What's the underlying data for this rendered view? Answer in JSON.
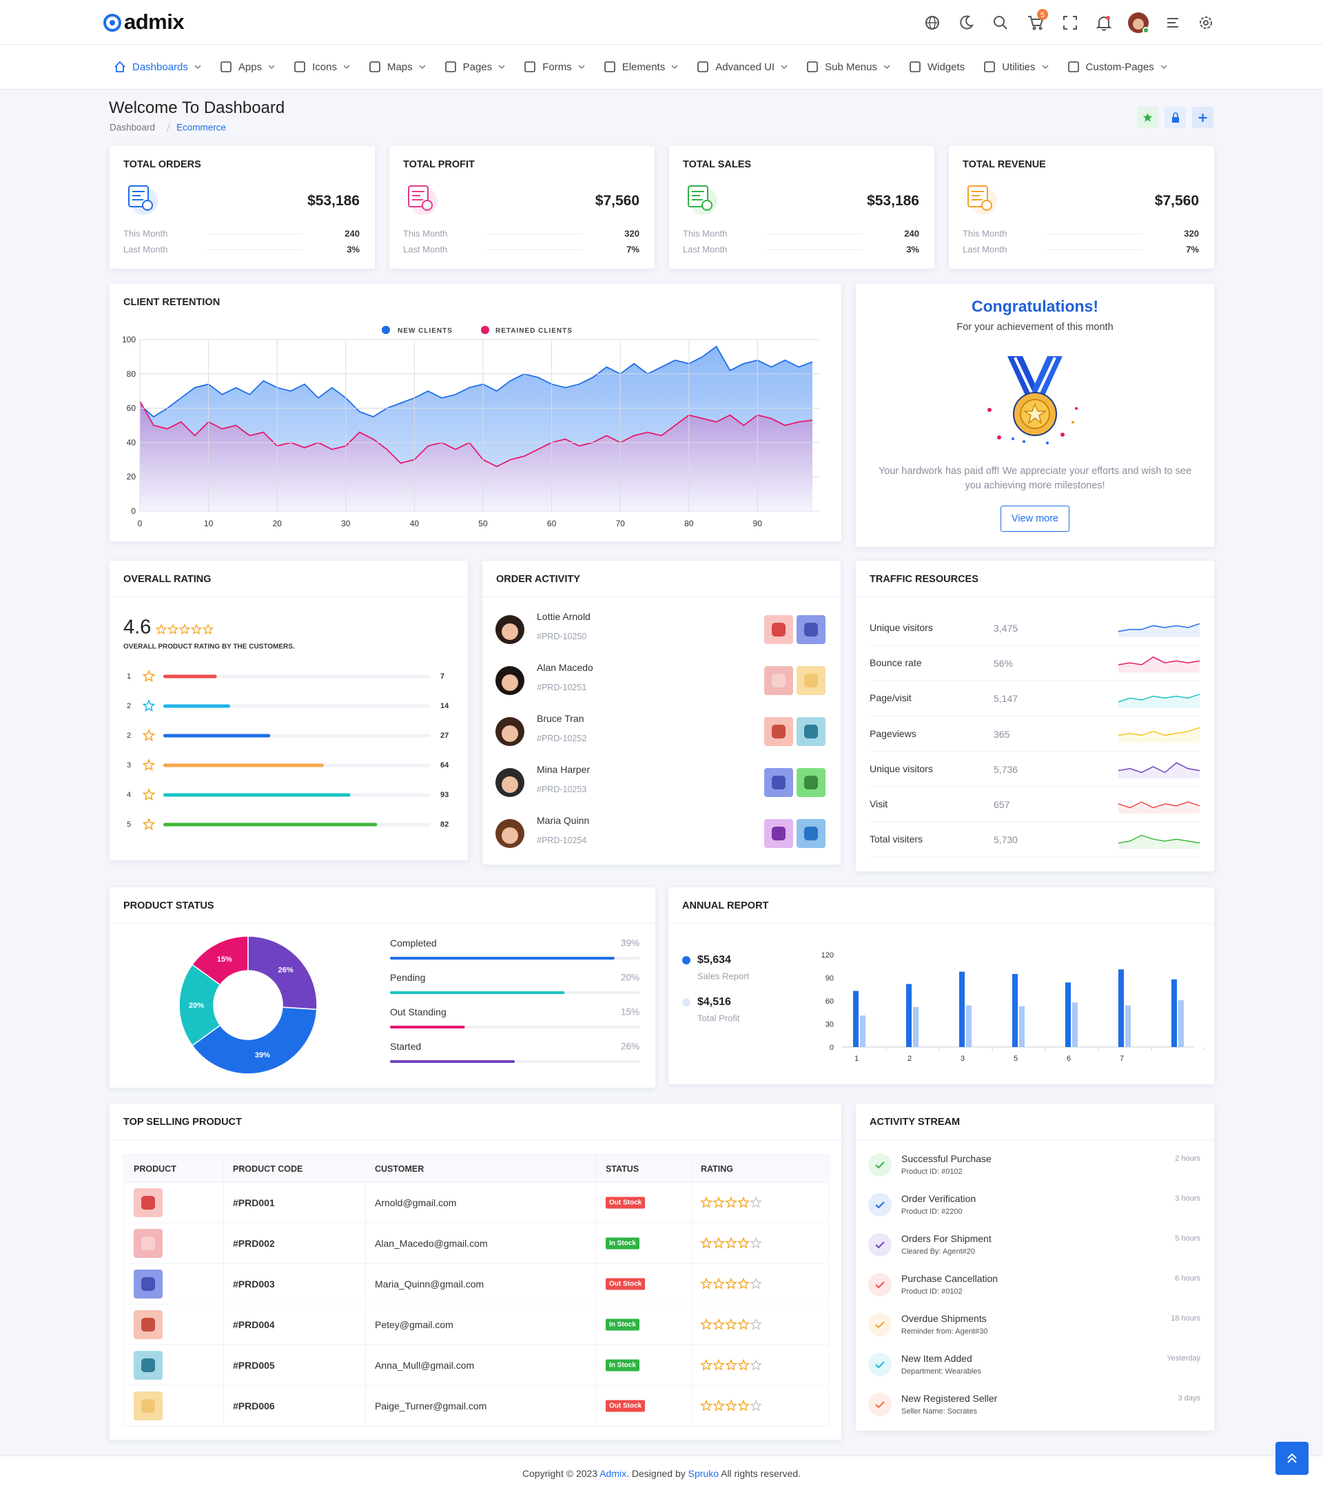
{
  "header": {
    "logo": "admix",
    "cart_count": "5"
  },
  "nav": {
    "items": [
      "Dashboards",
      "Apps",
      "Icons",
      "Maps",
      "Pages",
      "Forms",
      "Elements",
      "Advanced UI",
      "Sub Menus",
      "Widgets",
      "Utilities",
      "Custom-Pages"
    ],
    "dropdown": [
      true,
      true,
      true,
      true,
      true,
      true,
      true,
      true,
      true,
      false,
      true,
      true
    ],
    "active": 0
  },
  "page": {
    "title": "Welcome To Dashboard",
    "breadcrumb": [
      "Dashboard",
      "Ecommerce"
    ]
  },
  "stats": [
    {
      "title": "TOTAL ORDERS",
      "value": "$53,186",
      "color": "#1e6ee8",
      "rows": [
        {
          "label": "This Month",
          "value": "240"
        },
        {
          "label": "Last Month",
          "value": "3%"
        }
      ]
    },
    {
      "title": "TOTAL PROFIT",
      "value": "$7,560",
      "color": "#e8388a",
      "rows": [
        {
          "label": "This Month",
          "value": "320"
        },
        {
          "label": "Last Month",
          "value": "7%"
        }
      ]
    },
    {
      "title": "TOTAL SALES",
      "value": "$53,186",
      "color": "#2fb344",
      "rows": [
        {
          "label": "This Month",
          "value": "240"
        },
        {
          "label": "Last Month",
          "value": "3%"
        }
      ]
    },
    {
      "title": "TOTAL REVENUE",
      "value": "$7,560",
      "color": "#f59f2a",
      "rows": [
        {
          "label": "This Month",
          "value": "320"
        },
        {
          "label": "Last Month",
          "value": "7%"
        }
      ]
    }
  ],
  "client_retention": {
    "type": "area",
    "title": "CLIENT RETENTION",
    "x": [
      0,
      2,
      4,
      6,
      8,
      10,
      12,
      14,
      16,
      18,
      20,
      22,
      24,
      26,
      28,
      30,
      32,
      34,
      36,
      38,
      40,
      42,
      44,
      46,
      48,
      50,
      52,
      54,
      56,
      58,
      60,
      62,
      64,
      66,
      68,
      70,
      72,
      74,
      76,
      78,
      80,
      82,
      84,
      86,
      88,
      90,
      92,
      94,
      96,
      98
    ],
    "series": [
      {
        "name": "NEW CLIENTS",
        "color": "#1e6ee8",
        "values": [
          62,
          55,
          60,
          66,
          72,
          74,
          68,
          72,
          68,
          76,
          72,
          70,
          74,
          66,
          72,
          66,
          58,
          55,
          60,
          63,
          66,
          70,
          66,
          68,
          72,
          74,
          70,
          76,
          80,
          78,
          74,
          72,
          74,
          78,
          84,
          80,
          86,
          80,
          84,
          88,
          86,
          90,
          96,
          82,
          86,
          88,
          84,
          88,
          84,
          87
        ]
      },
      {
        "name": "RETAINED CLIENTS",
        "color": "#e5196b",
        "values": [
          64,
          50,
          48,
          52,
          44,
          52,
          48,
          50,
          44,
          46,
          38,
          40,
          37,
          40,
          36,
          38,
          46,
          42,
          36,
          28,
          30,
          38,
          40,
          36,
          40,
          30,
          26,
          30,
          32,
          36,
          40,
          42,
          38,
          40,
          44,
          40,
          44,
          46,
          44,
          50,
          56,
          54,
          52,
          56,
          50,
          56,
          54,
          50,
          52,
          53
        ]
      }
    ],
    "xlim": [
      0,
      99
    ],
    "ylim": [
      0,
      100
    ],
    "xticks": [
      0,
      10,
      20,
      30,
      40,
      50,
      60,
      70,
      80,
      90
    ],
    "yticks": [
      0,
      20,
      40,
      60,
      80,
      100
    ],
    "grid": true
  },
  "congrats": {
    "title": "Congratulations!",
    "subtitle": "For your achievement of this month",
    "text": "Your hardwork has paid off! We appreciate your efforts and wish to see you achieving more milestones!",
    "button": "View more"
  },
  "rating": {
    "title": "OVERALL RATING",
    "score": "4.6",
    "caption": "OVERALL PRODUCT RATING BY THE CUSTOMERS.",
    "bar_range": [
      0,
      100
    ],
    "rows": [
      {
        "label": "1",
        "count": "7",
        "bar": 20,
        "color": "#ef4b4b"
      },
      {
        "label": "2",
        "count": "14",
        "bar": 25,
        "color": "#1fb3e8"
      },
      {
        "label": "2",
        "count": "27",
        "bar": 40,
        "color": "#1e6ee8"
      },
      {
        "label": "3",
        "count": "64",
        "bar": 60,
        "color": "#f5a54a"
      },
      {
        "label": "4",
        "count": "93",
        "bar": 70,
        "color": "#19c3c3"
      },
      {
        "label": "5",
        "count": "82",
        "bar": 80,
        "color": "#3fb83a"
      }
    ]
  },
  "orders": {
    "title": "ORDER ACTIVITY",
    "people": [
      {
        "name": "Lottie Arnold",
        "id": "#PRD-10250"
      },
      {
        "name": "Alan Macedo",
        "id": "#PRD-10251"
      },
      {
        "name": "Bruce Tran",
        "id": "#PRD-10252"
      },
      {
        "name": "Mina Harper",
        "id": "#PRD-10253"
      },
      {
        "name": "Maria Quinn",
        "id": "#PRD-10254"
      }
    ]
  },
  "traffic": {
    "title": "TRAFFIC RESOURCES",
    "spark_ylim": [
      0,
      10
    ],
    "rows": [
      {
        "label": "Unique visitors",
        "value": "3,475",
        "color": "#1e6ee8",
        "spark": [
          3,
          4,
          4,
          6,
          5,
          6,
          5,
          7
        ]
      },
      {
        "label": "Bounce rate",
        "value": "56%",
        "color": "#e5196b",
        "spark": [
          4,
          5,
          4,
          8,
          5,
          6,
          5,
          6
        ]
      },
      {
        "label": "Page/visit",
        "value": "5,147",
        "color": "#19c3c3",
        "spark": [
          3,
          5,
          4,
          6,
          5,
          6,
          5,
          7
        ]
      },
      {
        "label": "Pageviews",
        "value": "365",
        "color": "#f5c518",
        "spark": [
          4,
          5,
          4,
          6,
          4,
          5,
          6,
          8
        ]
      },
      {
        "label": "Unique visitors",
        "value": "5,736",
        "color": "#6f42c1",
        "spark": [
          4,
          5,
          3,
          6,
          3,
          8,
          5,
          4
        ]
      },
      {
        "label": "Visit",
        "value": "657",
        "color": "#ef4b4b",
        "spark": [
          5,
          3,
          6,
          3,
          5,
          4,
          6,
          4
        ]
      },
      {
        "label": "Total visiters",
        "value": "5,730",
        "color": "#3fb83a",
        "spark": [
          3,
          4,
          7,
          5,
          4,
          5,
          4,
          3
        ]
      }
    ]
  },
  "product_status": {
    "type": "donut",
    "title": "PRODUCT STATUS",
    "categories": [
      "Completed",
      "Pending",
      "Out Standing",
      "Started"
    ],
    "values": [
      39,
      20,
      15,
      26
    ],
    "value_labels": [
      "39%",
      "20%",
      "15%",
      "26%"
    ],
    "colors": [
      "#1e6ee8",
      "#19c3c3",
      "#e6136e",
      "#6f42c1"
    ],
    "bar": [
      90,
      70,
      30,
      50
    ],
    "bar_range": [
      0,
      100
    ]
  },
  "annual_report": {
    "type": "bar",
    "title": "ANNUAL REPORT",
    "categories": [
      "1",
      "2",
      "3",
      "5",
      "6",
      "7",
      null
    ],
    "series": [
      {
        "name": "Sales Report",
        "amount": "$5,634",
        "color": "#1e6ee8",
        "values": [
          73,
          82,
          98,
          95,
          84,
          101,
          88
        ]
      },
      {
        "name": "Total Profit",
        "amount": "$4,516",
        "color": "#a9c8fa",
        "values": [
          41,
          52,
          54,
          53,
          58,
          54,
          61
        ]
      }
    ],
    "ylim": [
      0,
      120
    ],
    "yticks": [
      0,
      30,
      60,
      90,
      120
    ]
  },
  "top_selling": {
    "title": "TOP SELLING PRODUCT",
    "columns": [
      "PRODUCT",
      "PRODUCT CODE",
      "CUSTOMER",
      "STATUS",
      "RATING"
    ],
    "rating_max": 5,
    "rows": [
      {
        "code": "#PRD001",
        "customer": "Arnold@gmail.com",
        "status": "Out Stock",
        "status_color": "#ef4b4b",
        "rating": 4
      },
      {
        "code": "#PRD002",
        "customer": "Alan_Macedo@gmail.com",
        "status": "In Stock",
        "status_color": "#2fb344",
        "rating": 4
      },
      {
        "code": "#PRD003",
        "customer": "Maria_Quinn@gmail.com",
        "status": "Out Stock",
        "status_color": "#ef4b4b",
        "rating": 4
      },
      {
        "code": "#PRD004",
        "customer": "Petey@gmail.com",
        "status": "In Stock",
        "status_color": "#2fb344",
        "rating": 4
      },
      {
        "code": "#PRD005",
        "customer": "Anna_Mull@gmail.com",
        "status": "In Stock",
        "status_color": "#2fb344",
        "rating": 4
      },
      {
        "code": "#PRD006",
        "customer": "Paige_Turner@gmail.com",
        "status": "Out Stock",
        "status_color": "#ef4b4b",
        "rating": 4
      }
    ]
  },
  "activity": {
    "title": "ACTIVITY STREAM",
    "items": [
      {
        "title": "Successful Purchase",
        "sub": "Product ID: #0102",
        "time": "2 hours",
        "color": "#2fb344"
      },
      {
        "title": "Order Verification",
        "sub": "Product ID: #2200",
        "time": "3 hours",
        "color": "#1e6ee8"
      },
      {
        "title": "Orders For Shipment",
        "sub": "Cleared By: Agent#20",
        "time": "5 hours",
        "color": "#6f42c1"
      },
      {
        "title": "Purchase Cancellation",
        "sub": "Product ID: #0102",
        "time": "6 hours",
        "color": "#ef4b4b"
      },
      {
        "title": "Overdue Shipments",
        "sub": "Reminder from: Agent#30",
        "time": "18 hours",
        "color": "#f59f2a"
      },
      {
        "title": "New Item Added",
        "sub": "Department: Wearables",
        "time": "Yesterday",
        "color": "#19b5d6"
      },
      {
        "title": "New Registered Seller",
        "sub": "Seller Name: Socrates",
        "time": "3 days",
        "color": "#f36a3a"
      }
    ]
  },
  "footer": {
    "parts": [
      "Copyright © 2023 ",
      "Admix",
      ". Designed by ",
      "Spruko",
      " All rights reserved."
    ]
  }
}
